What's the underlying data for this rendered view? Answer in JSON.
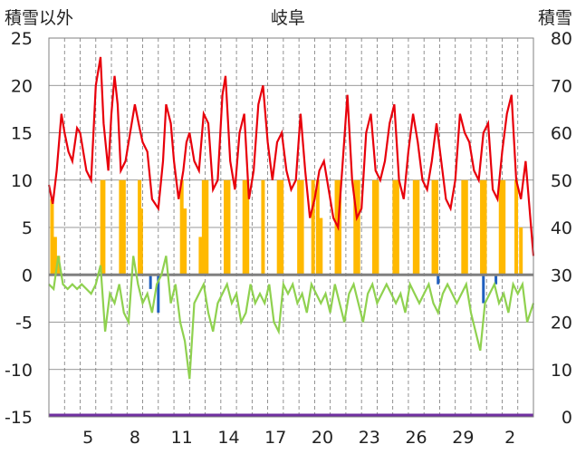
{
  "chart_data": {
    "type": "line",
    "title": "岐阜",
    "ylabel_left": "積雪以外",
    "ylabel_right": "積雪",
    "left_axis": {
      "ylim": [
        -15,
        25
      ],
      "ticks": [
        "25",
        "20",
        "15",
        "10",
        "5",
        "0",
        "-5",
        "-10",
        "-15"
      ]
    },
    "right_axis": {
      "ylim": [
        0,
        80
      ],
      "ticks": [
        "80",
        "70",
        "60",
        "50",
        "40",
        "30",
        "20",
        "10",
        "0"
      ]
    },
    "x_days": 31,
    "x_tick_labels": [
      "5",
      "8",
      "11",
      "14",
      "17",
      "20",
      "23",
      "26",
      "29",
      "2"
    ],
    "x_tick_positions_day": [
      2.5,
      5.5,
      8.5,
      11.5,
      14.5,
      17.5,
      20.5,
      23.5,
      26.5,
      29.5
    ],
    "grid": true,
    "colors": {
      "max_temp": "#e8000b",
      "min_temp": "#8fd14f",
      "precip": "#ffb900",
      "snow_depth": "#7030a0",
      "zero_line": "#808080",
      "blue_bars": "#1f5fbf",
      "grid": "#777777"
    },
    "series": [
      {
        "key": "max_temp",
        "x": [
          0.0,
          0.25,
          0.5,
          0.8,
          1.0,
          1.25,
          1.5,
          1.8,
          2.0,
          2.4,
          2.7,
          3.0,
          3.3,
          3.5,
          3.8,
          4.0,
          4.2,
          4.4,
          4.6,
          4.9,
          5.2,
          5.5,
          5.8,
          6.0,
          6.3,
          6.6,
          7.0,
          7.3,
          7.5,
          7.8,
          8.0,
          8.3,
          8.6,
          8.8,
          9.0,
          9.3,
          9.6,
          9.9,
          10.2,
          10.5,
          10.8,
          11.1,
          11.3,
          11.6,
          11.9,
          12.2,
          12.5,
          12.8,
          13.1,
          13.4,
          13.7,
          14.0,
          14.3,
          14.6,
          14.9,
          15.2,
          15.5,
          15.8,
          16.1,
          16.4,
          16.7,
          17.0,
          17.3,
          17.6,
          17.9,
          18.2,
          18.5,
          18.8,
          19.1,
          19.4,
          19.7,
          20.0,
          20.3,
          20.6,
          20.9,
          21.2,
          21.5,
          21.8,
          22.1,
          22.4,
          22.7,
          23.0,
          23.3,
          23.6,
          23.9,
          24.2,
          24.5,
          24.8,
          25.1,
          25.4,
          25.7,
          26.0,
          26.3,
          26.6,
          26.9,
          27.2,
          27.5,
          27.8,
          28.1,
          28.4,
          28.7,
          29.0,
          29.3,
          29.6,
          29.9,
          30.2,
          30.5,
          31.0
        ],
        "values": [
          9.5,
          7.5,
          11,
          17,
          15,
          13,
          12,
          15.5,
          15,
          11,
          10,
          20,
          23,
          16,
          11,
          17,
          21,
          18,
          11,
          12,
          15,
          18,
          15.5,
          14,
          13,
          8,
          7,
          12,
          18,
          16,
          12,
          8,
          11,
          14,
          15,
          12,
          11,
          17,
          16,
          9,
          10,
          19,
          21,
          12,
          9,
          15,
          17,
          8,
          11,
          18,
          20,
          14,
          10,
          14,
          15,
          11,
          9,
          10,
          17,
          11,
          6,
          8,
          11,
          12,
          9,
          6,
          5,
          12,
          19,
          10,
          6,
          7,
          15,
          17,
          11,
          10,
          12,
          16,
          18,
          10,
          8,
          13,
          17,
          14,
          10,
          9,
          12,
          16,
          12,
          8,
          7,
          10,
          17,
          15,
          14,
          11,
          10,
          15,
          16,
          9,
          8,
          13,
          17,
          19,
          10,
          8,
          12,
          2
        ]
      },
      {
        "key": "min_temp",
        "x": [
          0.0,
          0.3,
          0.6,
          0.9,
          1.2,
          1.5,
          1.8,
          2.1,
          2.4,
          2.7,
          3.0,
          3.3,
          3.6,
          3.9,
          4.2,
          4.5,
          4.8,
          5.1,
          5.4,
          5.7,
          6.0,
          6.3,
          6.6,
          6.9,
          7.2,
          7.5,
          7.8,
          8.1,
          8.4,
          8.7,
          9.0,
          9.3,
          9.6,
          9.9,
          10.2,
          10.5,
          10.8,
          11.1,
          11.4,
          11.7,
          12.0,
          12.3,
          12.6,
          12.9,
          13.2,
          13.5,
          13.8,
          14.1,
          14.4,
          14.7,
          15.0,
          15.3,
          15.6,
          15.9,
          16.2,
          16.5,
          16.8,
          17.1,
          17.4,
          17.7,
          18.0,
          18.3,
          18.6,
          18.9,
          19.2,
          19.5,
          19.8,
          20.1,
          20.4,
          20.7,
          21.0,
          21.3,
          21.6,
          21.9,
          22.2,
          22.5,
          22.8,
          23.1,
          23.4,
          23.7,
          24.0,
          24.3,
          24.6,
          24.9,
          25.2,
          25.5,
          25.8,
          26.1,
          26.4,
          26.7,
          27.0,
          27.3,
          27.6,
          27.9,
          28.2,
          28.5,
          28.8,
          29.1,
          29.4,
          29.7,
          30.0,
          30.3,
          30.6,
          31.0
        ],
        "values": [
          -1,
          -1.5,
          2,
          -1,
          -1.5,
          -1,
          -1.5,
          -1,
          -1.5,
          -2,
          -1,
          1,
          -6,
          -2,
          -3,
          -1,
          -4,
          -5,
          2,
          -1,
          -3,
          -2,
          -4,
          -1,
          0,
          2,
          -3,
          -1,
          -5,
          -7,
          -11,
          -3,
          -2,
          -1,
          -4,
          -6,
          -3,
          -2,
          -1,
          -3,
          -2,
          -5,
          -4,
          -1,
          -3,
          -2,
          -3,
          -1,
          -5,
          -6,
          -1,
          -2,
          -1,
          -3,
          -2,
          -4,
          -1,
          -2,
          -3,
          -2,
          -4,
          -1,
          -3,
          -5,
          -2,
          -1,
          -3,
          -5,
          -2,
          -1,
          -3,
          -2,
          -1,
          -2,
          -3,
          -2,
          -4,
          -1,
          -2,
          -3,
          -2,
          -1,
          -3,
          -4,
          -2,
          -1,
          -2,
          -3,
          -2,
          -1,
          -4,
          -6,
          -8,
          -3,
          -2,
          -1,
          -3,
          -2,
          -4,
          -1,
          -2,
          -1,
          -5,
          -3
        ],
        "note": ""
      }
    ],
    "precip_bars": {
      "x": [
        0.2,
        0.4,
        0.6,
        3.4,
        3.5,
        4.6,
        4.8,
        5.8,
        5.9,
        8.5,
        8.7,
        9.7,
        9.9,
        10.1,
        11.3,
        11.5,
        12.5,
        12.7,
        13.7,
        14.7,
        14.9,
        16.0,
        16.2,
        16.9,
        17.2,
        17.4,
        18.4,
        18.6,
        19.6,
        19.8,
        20.8,
        21.0,
        22.1,
        22.3,
        23.4,
        23.6,
        24.6,
        24.8,
        26.5,
        26.7,
        27.7,
        27.9,
        28.9,
        29.1,
        29.9,
        30.2
      ],
      "values": [
        8,
        4,
        2,
        10,
        10,
        10,
        10,
        10,
        7,
        10,
        7,
        4,
        10,
        10,
        10,
        10,
        10,
        10,
        10,
        10,
        10,
        10,
        10,
        10,
        10,
        6,
        10,
        10,
        10,
        10,
        10,
        10,
        10,
        10,
        10,
        10,
        10,
        10,
        10,
        10,
        10,
        10,
        10,
        10,
        10,
        5
      ]
    },
    "blue_bars": {
      "x": [
        6.5,
        7.0,
        24.9,
        27.8,
        28.6
      ],
      "values": [
        -1.5,
        -4,
        -1,
        -3,
        -1
      ]
    },
    "snow_depth_line": {
      "value": 0
    }
  }
}
